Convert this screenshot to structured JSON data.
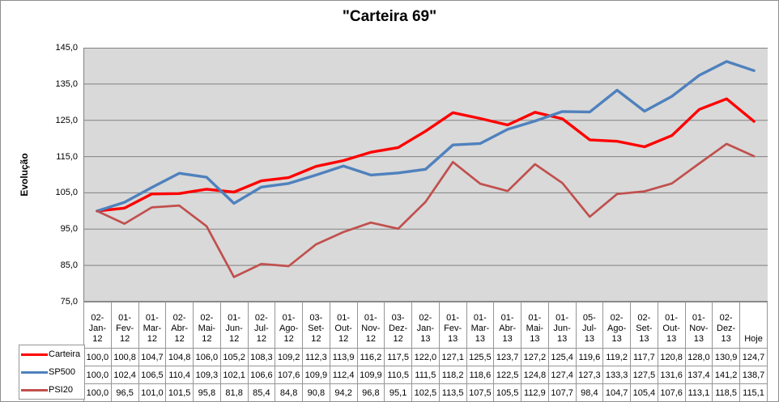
{
  "chart_data": {
    "type": "line",
    "title": "\"Carteira 69\"",
    "xlabel": "",
    "ylabel": "Evolução",
    "ylim": [
      75,
      145
    ],
    "ytick_step": 10,
    "y_tick_labels": [
      "145,0",
      "135,0",
      "125,0",
      "115,0",
      "105,0",
      "95,0",
      "85,0",
      "75,0"
    ],
    "grid": true,
    "legend_position": "bottom-left",
    "data_table_shown": true,
    "decimal_separator": ",",
    "categories": [
      "02-Jan-12",
      "01-Fev-12",
      "01-Mar-12",
      "02-Abr-12",
      "02-Mai-12",
      "01-Jun-12",
      "02-Jul-12",
      "01-Ago-12",
      "03-Set-12",
      "01-Out-12",
      "01-Nov-12",
      "03-Dez-12",
      "02-Jan-13",
      "01-Fev-13",
      "01-Mar-13",
      "01-Abr-13",
      "01-Mai-13",
      "01-Jun-13",
      "05-Jul-13",
      "02-Ago-13",
      "02-Set-13",
      "01-Out-13",
      "01-Nov-13",
      "02-Dez-13",
      "Hoje"
    ],
    "series": [
      {
        "name": "Carteira",
        "color": "#FF0000",
        "values": [
          100.0,
          100.8,
          104.7,
          104.8,
          106.0,
          105.2,
          108.3,
          109.2,
          112.3,
          113.9,
          116.2,
          117.5,
          122.0,
          127.1,
          125.5,
          123.7,
          127.2,
          125.4,
          119.6,
          119.2,
          117.7,
          120.8,
          128.0,
          130.9,
          124.7
        ]
      },
      {
        "name": "SP500",
        "color": "#4F81BD",
        "values": [
          100.0,
          102.4,
          106.5,
          110.4,
          109.3,
          102.1,
          106.6,
          107.6,
          109.9,
          112.4,
          109.9,
          110.5,
          111.5,
          118.2,
          118.6,
          122.5,
          124.8,
          127.4,
          127.3,
          133.3,
          127.5,
          131.6,
          137.4,
          141.2,
          138.7
        ]
      },
      {
        "name": "PSI20",
        "color": "#C0504D",
        "values": [
          100.0,
          96.5,
          101.0,
          101.5,
          95.8,
          81.8,
          85.4,
          84.8,
          90.8,
          94.2,
          96.8,
          95.1,
          102.5,
          113.5,
          107.5,
          105.5,
          112.9,
          107.7,
          98.4,
          104.7,
          105.4,
          107.6,
          113.1,
          118.5,
          115.1
        ]
      }
    ],
    "colors": {
      "plot_bg": "#D9D9D9",
      "gridline": "#828282",
      "table_border": "#969696",
      "text": "#000000"
    }
  }
}
